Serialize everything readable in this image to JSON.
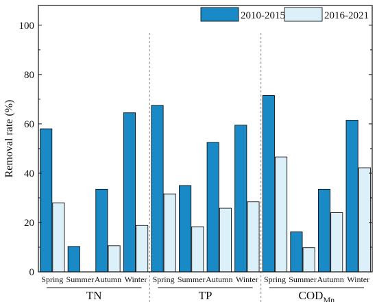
{
  "chart_data": {
    "type": "bar",
    "ylabel": "Removal rate (%)",
    "ylim": [
      0,
      108
    ],
    "yticks": [
      0,
      20,
      40,
      60,
      80,
      100
    ],
    "legend_position": "top-right",
    "series": [
      {
        "name": "2010-2015",
        "color": "#1a8ac6"
      },
      {
        "name": "2016-2021",
        "color": "#dcf0f9"
      }
    ],
    "groups": [
      {
        "label": "TN",
        "label_sub": "",
        "categories": [
          "Spring",
          "Summer",
          "Autumn",
          "Winter"
        ],
        "values": [
          [
            58,
            28
          ],
          [
            10.3,
            0
          ],
          [
            33.5,
            10.6
          ],
          [
            64.5,
            18.8
          ]
        ]
      },
      {
        "label": "TP",
        "label_sub": "",
        "categories": [
          "Spring",
          "Summer",
          "Autumn",
          "Winter"
        ],
        "values": [
          [
            67.5,
            31.6
          ],
          [
            35,
            18.3
          ],
          [
            52.5,
            25.8
          ],
          [
            59.5,
            28.4
          ]
        ]
      },
      {
        "label": "COD",
        "label_sub": "Mn",
        "categories": [
          "Spring",
          "Summer",
          "Autumn",
          "Winter"
        ],
        "values": [
          [
            71.5,
            46.6
          ],
          [
            16.2,
            9.8
          ],
          [
            33.5,
            24
          ],
          [
            61.5,
            42.2
          ]
        ]
      }
    ]
  }
}
